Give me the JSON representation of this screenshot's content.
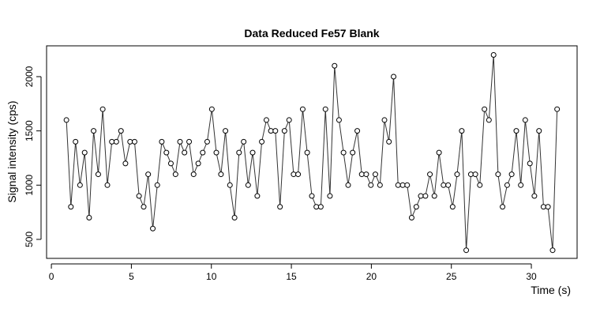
{
  "chart_data": {
    "type": "line-points",
    "title": "Data Reduced Fe57 Blank",
    "x_label": "Time (s)",
    "y_label": "Signal intensity (cps)",
    "color": "#333333",
    "x": [
      0.94,
      1.22,
      1.51,
      1.79,
      2.08,
      2.36,
      2.64,
      2.93,
      3.21,
      3.5,
      3.78,
      4.06,
      4.35,
      4.63,
      4.92,
      5.2,
      5.48,
      5.77,
      6.05,
      6.34,
      6.62,
      6.9,
      7.19,
      7.47,
      7.76,
      8.04,
      8.32,
      8.61,
      8.89,
      9.18,
      9.46,
      9.74,
      10.03,
      10.31,
      10.6,
      10.88,
      11.16,
      11.45,
      11.73,
      12.02,
      12.3,
      12.58,
      12.87,
      13.15,
      13.44,
      13.72,
      14.0,
      14.29,
      14.57,
      14.86,
      15.14,
      15.42,
      15.71,
      15.99,
      16.28,
      16.56,
      16.84,
      17.13,
      17.41,
      17.7,
      17.98,
      18.26,
      18.55,
      18.83,
      19.12,
      19.4,
      19.68,
      19.97,
      20.25,
      20.54,
      20.82,
      21.1,
      21.39,
      21.67,
      21.96,
      22.24,
      22.52,
      22.81,
      23.09,
      23.38,
      23.66,
      23.94,
      24.23,
      24.51,
      24.8,
      25.08,
      25.36,
      25.65,
      25.93,
      26.22,
      26.5,
      26.78,
      27.07,
      27.35,
      27.64,
      27.92,
      28.2,
      28.49,
      28.77,
      29.06,
      29.34,
      29.62,
      29.91,
      30.19,
      30.48,
      30.76,
      31.04,
      31.33,
      31.61
    ],
    "values": [
      1600,
      800,
      1400,
      1000,
      1300,
      700,
      1500,
      1100,
      1700,
      1000,
      1400,
      1400,
      1500,
      1200,
      1400,
      1400,
      900,
      800,
      1100,
      600,
      1000,
      1400,
      1300,
      1200,
      1100,
      1400,
      1300,
      1400,
      1100,
      1200,
      1300,
      1400,
      1700,
      1300,
      1100,
      1500,
      1000,
      700,
      1300,
      1400,
      1000,
      1300,
      900,
      1400,
      1600,
      1500,
      1500,
      800,
      1500,
      1600,
      1100,
      1100,
      1700,
      1300,
      900,
      800,
      800,
      1700,
      900,
      2100,
      1600,
      1300,
      1000,
      1300,
      1500,
      1100,
      1100,
      1000,
      1100,
      1000,
      1600,
      1400,
      2000,
      1000,
      1000,
      1000,
      700,
      800,
      900,
      900,
      1100,
      900,
      1300,
      1000,
      1000,
      800,
      1100,
      1500,
      400,
      1100,
      1100,
      1000,
      1700,
      1600,
      2200,
      1100,
      800,
      1000,
      1100,
      1500,
      1000,
      1600,
      1200,
      900,
      1500,
      800,
      800,
      400,
      1700
    ],
    "xlim": [
      -0.3,
      32.86
    ],
    "ylim": [
      325,
      2284
    ],
    "xticks": [
      0,
      5,
      10,
      15,
      20,
      25,
      30
    ],
    "yticks": [
      500,
      1000,
      1500,
      2000
    ]
  }
}
